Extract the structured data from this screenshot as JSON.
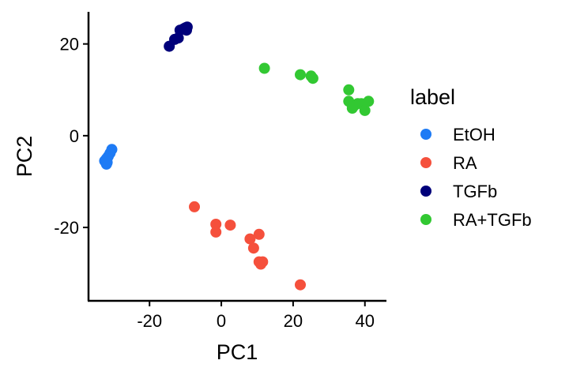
{
  "chart_data": {
    "type": "scatter",
    "title": "",
    "xlabel": "PC1",
    "ylabel": "PC2",
    "xlim": [
      -37,
      46
    ],
    "ylim": [
      -36,
      27
    ],
    "x_ticks": [
      -20,
      0,
      20,
      40
    ],
    "y_ticks": [
      -20,
      0,
      20
    ],
    "grid": false,
    "legend": {
      "title": "label",
      "position": "right"
    },
    "series": [
      {
        "name": "EtOH",
        "color": "#1E7BF5",
        "points": [
          [
            -30.5,
            -3
          ],
          [
            -31,
            -3.8
          ],
          [
            -31.5,
            -4.5
          ],
          [
            -32,
            -5
          ],
          [
            -32.5,
            -5.5
          ],
          [
            -32,
            -6.2
          ],
          [
            -31.8,
            -5.8
          ]
        ]
      },
      {
        "name": "RA",
        "color": "#F5503C",
        "points": [
          [
            -7.5,
            -15.5
          ],
          [
            -1.5,
            -19.3
          ],
          [
            -1.5,
            -21
          ],
          [
            2.5,
            -19.5
          ],
          [
            8,
            -22.5
          ],
          [
            10.5,
            -21.5
          ],
          [
            9,
            -24.5
          ],
          [
            10.5,
            -27.5
          ],
          [
            11,
            -28
          ],
          [
            11.5,
            -27.5
          ],
          [
            22,
            -32.5
          ]
        ]
      },
      {
        "name": "TGFb",
        "color": "#00007A",
        "points": [
          [
            -14.5,
            19.5
          ],
          [
            -13,
            21
          ],
          [
            -12,
            21.3
          ],
          [
            -11.5,
            23
          ],
          [
            -10.5,
            23.3
          ],
          [
            -10,
            23.5
          ],
          [
            -9.5,
            23.7
          ],
          [
            -9.7,
            23
          ]
        ]
      },
      {
        "name": "RA+TGFb",
        "color": "#32C832",
        "points": [
          [
            12,
            14.7
          ],
          [
            22,
            13.3
          ],
          [
            25,
            13
          ],
          [
            25.5,
            12.5
          ],
          [
            35.5,
            10
          ],
          [
            35.5,
            7.5
          ],
          [
            37,
            6.5
          ],
          [
            38,
            7
          ],
          [
            39,
            7
          ],
          [
            40,
            5.5
          ],
          [
            41,
            7.5
          ],
          [
            36.5,
            6
          ]
        ]
      }
    ]
  }
}
